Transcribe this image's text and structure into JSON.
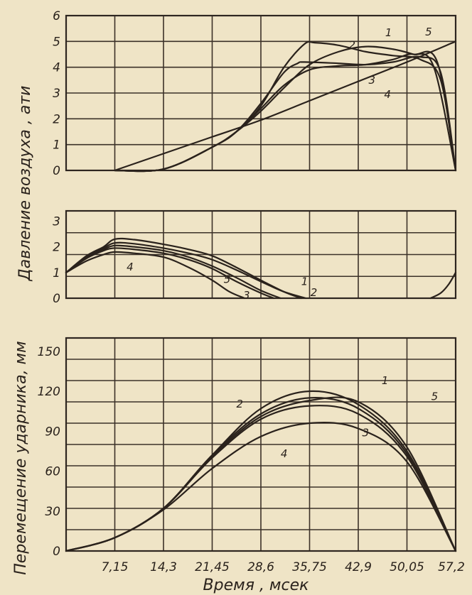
{
  "figure": {
    "ylabel_top": "Давление   воздуха ,  ати",
    "ylabel_bottom": "Перемещение ударника, мм",
    "xlabel": "Время  ,  мсек",
    "x_ticks": [
      "7,15",
      "14,3",
      "21,45",
      "28,6",
      "35,75",
      "42,9",
      "50,05",
      "57,2"
    ]
  },
  "chart_data": [
    {
      "type": "line",
      "panel": "upper-pressure",
      "ylabel": "Давление воздуха, ати",
      "yticks": [
        "0",
        "1",
        "2",
        "3",
        "4",
        "5",
        "6"
      ],
      "xlim": [
        0,
        57.2
      ],
      "ylim": [
        0,
        6
      ],
      "grid": true,
      "series": [
        {
          "name": "1",
          "x": [
            7.15,
            14.3,
            21.45,
            25,
            28.6,
            32,
            35,
            36.5,
            40,
            44,
            48,
            52,
            55,
            57.2
          ],
          "y": [
            0,
            0.05,
            0.9,
            1.5,
            2.5,
            4.0,
            4.9,
            4.95,
            4.85,
            4.6,
            4.45,
            4.3,
            3.5,
            0
          ]
        },
        {
          "name": "2",
          "x": [
            7.15,
            14.3,
            21.45,
            25,
            28.6,
            32,
            34,
            35,
            40,
            44,
            48,
            52,
            55,
            57.2
          ],
          "y": [
            0,
            0.05,
            0.9,
            1.5,
            2.6,
            3.8,
            4.15,
            4.2,
            4.15,
            4.1,
            4.2,
            4.4,
            3.8,
            0
          ]
        },
        {
          "name": "3",
          "x": [
            7.15,
            14.3,
            21.45,
            25,
            28.6,
            32,
            35.75,
            40,
            44,
            48,
            51,
            54,
            57.2
          ],
          "y": [
            0,
            0.05,
            0.9,
            1.5,
            2.4,
            3.3,
            3.9,
            4.05,
            4.1,
            4.3,
            4.5,
            4.0,
            0
          ]
        },
        {
          "name": "4",
          "x": [
            7.15,
            14.3,
            21.45,
            28.6,
            35.75,
            42.9,
            50.05,
            57.2
          ],
          "y": [
            0,
            0.65,
            1.3,
            1.95,
            2.7,
            3.45,
            4.2,
            5.0
          ]
        },
        {
          "name": "5",
          "x": [
            7.15,
            14.3,
            21.45,
            25,
            28.6,
            32,
            35.75,
            40,
            44,
            48,
            51,
            54.5,
            57.2
          ],
          "y": [
            0,
            0.05,
            0.9,
            1.5,
            2.3,
            3.2,
            4.1,
            4.6,
            4.8,
            4.7,
            4.5,
            4.2,
            0
          ]
        }
      ]
    },
    {
      "type": "line",
      "panel": "middle-pressure",
      "ylabel": "Давление воздуха, ати",
      "yticks": [
        "0",
        "1",
        "2",
        "3"
      ],
      "xlim": [
        0,
        57.2
      ],
      "ylim": [
        0,
        3.4
      ],
      "grid": true,
      "series": [
        {
          "name": "1",
          "x": [
            0,
            3,
            5.5,
            7.15,
            10,
            14.3,
            18,
            21.45,
            25,
            28.6,
            32,
            34.5
          ],
          "y": [
            1.0,
            1.65,
            2.0,
            2.3,
            2.28,
            2.1,
            1.9,
            1.65,
            1.2,
            0.7,
            0.25,
            0
          ]
        },
        {
          "name": "2",
          "x": [
            0,
            3,
            5.5,
            7.15,
            10,
            14.3,
            18,
            21.45,
            25,
            28.6,
            32,
            35.2
          ],
          "y": [
            1.0,
            1.6,
            1.95,
            2.15,
            2.12,
            1.95,
            1.75,
            1.5,
            1.1,
            0.65,
            0.25,
            0
          ]
        },
        {
          "name": "3",
          "x": [
            0,
            3,
            5.5,
            7.15,
            10,
            14.3,
            18,
            21.45,
            25,
            28.6,
            30.5
          ],
          "y": [
            1.0,
            1.55,
            1.85,
            1.95,
            1.9,
            1.75,
            1.5,
            1.15,
            0.65,
            0.2,
            0
          ]
        },
        {
          "name": "4",
          "x": [
            0,
            3,
            5.5,
            7.15,
            10,
            14.3,
            18,
            21.45,
            24,
            26.2
          ],
          "y": [
            1.0,
            1.45,
            1.7,
            1.8,
            1.75,
            1.6,
            1.2,
            0.7,
            0.25,
            0
          ]
        },
        {
          "name": "5",
          "x": [
            0,
            3,
            5.5,
            7.15,
            10,
            14.3,
            18,
            21.45,
            25,
            28.6,
            31.5
          ],
          "y": [
            1.0,
            1.6,
            1.9,
            2.05,
            2.0,
            1.85,
            1.6,
            1.25,
            0.8,
            0.3,
            0
          ]
        },
        {
          "name": "",
          "x": [
            53.5,
            55,
            56.2,
            57.2
          ],
          "y": [
            0,
            0.2,
            0.55,
            1.0
          ]
        }
      ]
    },
    {
      "type": "line",
      "panel": "displacement",
      "ylabel": "Перемещение ударника, мм",
      "xlabel": "Время, мсек",
      "yticks": [
        "0",
        "30",
        "60",
        "90",
        "120",
        "150"
      ],
      "x_ticks": [
        "7,15",
        "14,3",
        "21,45",
        "28,6",
        "35,75",
        "42,9",
        "50,05",
        "57,2"
      ],
      "xlim": [
        0,
        57.2
      ],
      "ylim": [
        0,
        160
      ],
      "grid": true,
      "series": [
        {
          "name": "1",
          "x": [
            0,
            7.15,
            14.3,
            21.45,
            28.6,
            35.75,
            42.9,
            50.05,
            57.2
          ],
          "y": [
            0,
            10,
            32,
            72,
            107,
            120,
            110,
            75,
            0
          ]
        },
        {
          "name": "2",
          "x": [
            0,
            7.15,
            14.3,
            21.45,
            28.6,
            35.75,
            42.9,
            50.05,
            57.2
          ],
          "y": [
            0,
            10,
            32,
            72,
            103,
            115,
            107,
            73,
            0
          ]
        },
        {
          "name": "3",
          "x": [
            0,
            7.15,
            14.3,
            21.45,
            28.6,
            35.75,
            42.9,
            50.05,
            57.2
          ],
          "y": [
            0,
            10,
            32,
            70,
            99,
            109,
            103,
            71,
            0
          ]
        },
        {
          "name": "4",
          "x": [
            0,
            7.15,
            14.3,
            21.45,
            28.6,
            35.75,
            42.9,
            50.05,
            57.2
          ],
          "y": [
            0,
            10,
            31,
            62,
            86,
            96,
            92,
            67,
            0
          ]
        },
        {
          "name": "5",
          "x": [
            0,
            7.15,
            14.3,
            21.45,
            28.6,
            35.75,
            42.9,
            50.05,
            57.2
          ],
          "y": [
            0,
            10,
            32,
            71,
            101,
            113,
            112,
            78,
            0
          ]
        }
      ]
    }
  ]
}
